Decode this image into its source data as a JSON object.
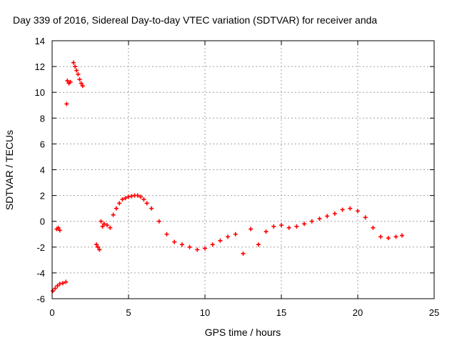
{
  "chart_data": {
    "type": "scatter",
    "title": "Day 339 of 2016, Sidereal Day-to-day VTEC variation (SDTVAR) for receiver anda",
    "xlabel": "GPS time / hours",
    "ylabel": "SDTVAR / TECUs",
    "xlim": [
      0,
      25
    ],
    "ylim": [
      -6,
      14
    ],
    "xticks": [
      0,
      5,
      10,
      15,
      20,
      25
    ],
    "yticks": [
      -6,
      -4,
      -2,
      0,
      2,
      4,
      6,
      8,
      10,
      12,
      14
    ],
    "grid": true,
    "marker": "plus",
    "series": [
      {
        "name": "SDTVAR",
        "color": "#ff0000",
        "x": [
          0.05,
          0.2,
          0.35,
          0.5,
          0.7,
          0.9,
          0.3,
          0.4,
          0.5,
          0.95,
          1.0,
          1.1,
          1.2,
          1.4,
          1.5,
          1.6,
          1.7,
          1.8,
          1.9,
          2.0,
          2.9,
          3.0,
          3.1,
          3.2,
          3.3,
          3.4,
          3.6,
          3.8,
          4.0,
          4.2,
          4.4,
          4.6,
          4.8,
          5.0,
          5.2,
          5.4,
          5.6,
          5.8,
          6.0,
          6.2,
          6.5,
          7.0,
          7.5,
          8.0,
          8.5,
          9.0,
          9.5,
          10.0,
          10.5,
          11.0,
          11.5,
          12.0,
          12.5,
          13.0,
          13.5,
          14.0,
          14.5,
          15.0,
          15.5,
          16.0,
          16.5,
          17.0,
          17.5,
          18.0,
          18.5,
          19.0,
          19.5,
          20.0,
          20.5,
          21.0,
          21.5,
          22.0,
          22.5,
          22.9
        ],
        "y": [
          -5.4,
          -5.2,
          -5.0,
          -4.85,
          -4.8,
          -4.7,
          -0.6,
          -0.5,
          -0.7,
          9.1,
          10.9,
          10.7,
          10.8,
          12.3,
          12.0,
          11.7,
          11.4,
          11.0,
          10.7,
          10.5,
          -1.8,
          -2.0,
          -2.2,
          0.0,
          -0.4,
          -0.2,
          -0.3,
          -0.5,
          0.5,
          1.0,
          1.4,
          1.7,
          1.8,
          1.9,
          1.95,
          2.0,
          2.0,
          1.9,
          1.7,
          1.4,
          1.0,
          0.0,
          -1.0,
          -1.6,
          -1.8,
          -2.0,
          -2.2,
          -2.1,
          -1.8,
          -1.5,
          -1.2,
          -1.0,
          -2.5,
          -0.6,
          -1.8,
          -0.8,
          -0.4,
          -0.3,
          -0.5,
          -0.4,
          -0.2,
          0.0,
          0.2,
          0.4,
          0.6,
          0.9,
          1.0,
          0.8,
          0.3,
          -0.5,
          -1.2,
          -1.3,
          -1.2,
          -1.1
        ]
      }
    ]
  }
}
